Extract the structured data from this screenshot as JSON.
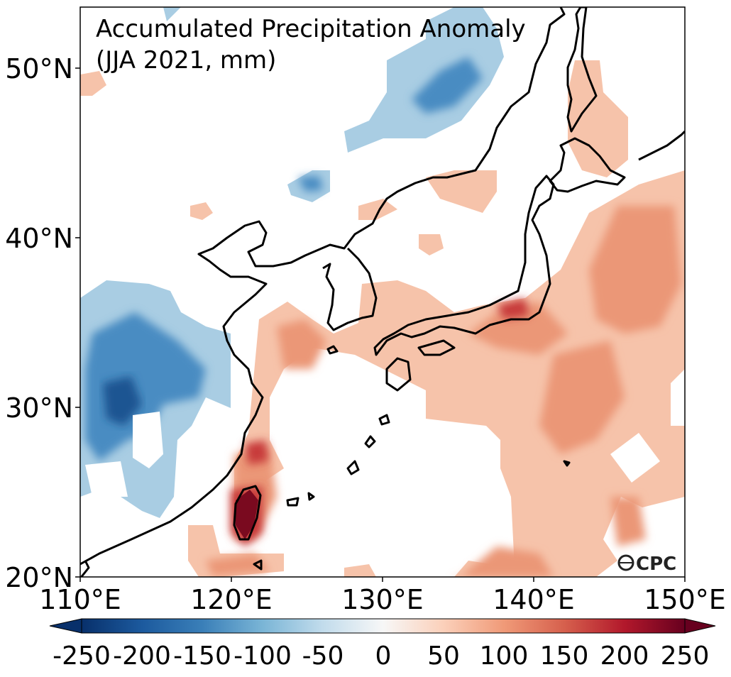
{
  "title_line1": "Accumulated Precipitation Anomaly",
  "title_line2": "(JJA 2021, mm)",
  "logo": "CPC",
  "lat_ticks": [
    "50°N",
    "40°N",
    "30°N",
    "20°N"
  ],
  "lon_ticks": [
    "110°E",
    "120°E",
    "130°E",
    "140°E",
    "150°E"
  ],
  "colorbar": {
    "ticks": [
      "-250",
      "-200",
      "-150",
      "-100",
      "-50",
      "0",
      "50",
      "100",
      "150",
      "200",
      "250"
    ],
    "colors": [
      "#08306b",
      "#2166ac",
      "#4393c3",
      "#92c5de",
      "#d1e5f0",
      "#f7f7f7",
      "#fddbc7",
      "#f4a582",
      "#d6604d",
      "#b2182b",
      "#67001f"
    ]
  },
  "map": {
    "lon_range": [
      110,
      150
    ],
    "lat_range": [
      20,
      53.5
    ]
  }
}
